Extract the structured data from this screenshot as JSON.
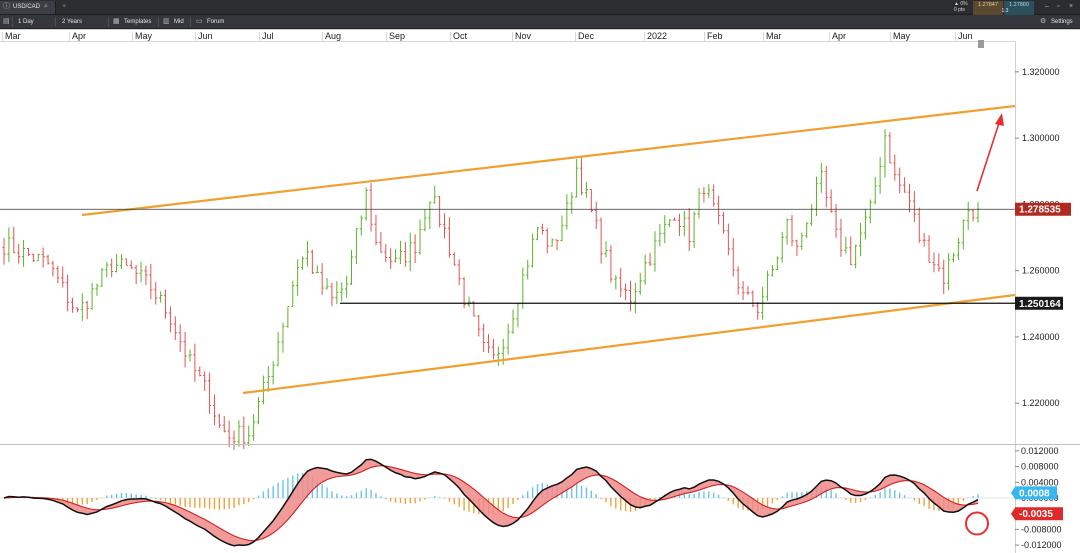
{
  "toolbar": {
    "symbol": "USD/CAD",
    "interval": "1 Day",
    "range": "2 Years",
    "templates_label": "Templates",
    "mid_label": "Mid",
    "forum_label": "Forum",
    "settings_label": "Settings",
    "change_pct": "▲ 0%",
    "change_pts": "0 pts",
    "sell_price": "1.27847",
    "buy_price": "1.27860",
    "spread": "1.3"
  },
  "chart_data": {
    "type": "candlestick",
    "instrument": "USD/CAD",
    "x_months": [
      "Mar",
      "Apr",
      "May",
      "Jun",
      "Jul",
      "Aug",
      "Sep",
      "Oct",
      "Nov",
      "Dec",
      "2022",
      "Feb",
      "Mar",
      "Apr",
      "May",
      "Jun"
    ],
    "y_ticks": [
      "1.320000",
      "1.300000",
      "1.280000",
      "1.260000",
      "1.240000",
      "1.220000"
    ],
    "ylim": [
      1.208,
      1.329
    ],
    "price_path": [
      [
        0,
        1.268
      ],
      [
        9,
        1.262
      ],
      [
        15,
        1.247
      ],
      [
        22,
        1.262
      ],
      [
        26,
        1.26
      ],
      [
        30,
        1.255
      ],
      [
        34,
        1.246
      ],
      [
        38,
        1.232
      ],
      [
        42,
        1.222
      ],
      [
        44,
        1.213
      ],
      [
        46,
        1.21
      ],
      [
        50,
        1.211
      ],
      [
        54,
        1.228
      ],
      [
        58,
        1.25
      ],
      [
        60,
        1.262
      ],
      [
        62,
        1.265
      ],
      [
        64,
        1.257
      ],
      [
        67,
        1.251
      ],
      [
        70,
        1.256
      ],
      [
        72,
        1.27
      ],
      [
        74,
        1.283
      ],
      [
        76,
        1.268
      ],
      [
        80,
        1.262
      ],
      [
        84,
        1.268
      ],
      [
        87,
        1.283
      ],
      [
        90,
        1.272
      ],
      [
        94,
        1.252
      ],
      [
        98,
        1.236
      ],
      [
        100,
        1.233
      ],
      [
        103,
        1.243
      ],
      [
        106,
        1.258
      ],
      [
        109,
        1.273
      ],
      [
        112,
        1.267
      ],
      [
        115,
        1.278
      ],
      [
        117,
        1.291
      ],
      [
        119,
        1.282
      ],
      [
        122,
        1.268
      ],
      [
        125,
        1.255
      ],
      [
        128,
        1.252
      ],
      [
        131,
        1.262
      ],
      [
        134,
        1.27
      ],
      [
        137,
        1.278
      ],
      [
        140,
        1.271
      ],
      [
        143,
        1.286
      ],
      [
        145,
        1.278
      ],
      [
        148,
        1.265
      ],
      [
        151,
        1.252
      ],
      [
        154,
        1.249
      ],
      [
        157,
        1.26
      ],
      [
        160,
        1.274
      ],
      [
        162,
        1.266
      ],
      [
        164,
        1.276
      ],
      [
        167,
        1.287
      ],
      [
        170,
        1.27
      ],
      [
        173,
        1.264
      ],
      [
        177,
        1.278
      ],
      [
        180,
        1.301
      ],
      [
        182,
        1.288
      ],
      [
        185,
        1.281
      ],
      [
        187,
        1.27
      ],
      [
        190,
        1.263
      ],
      [
        192,
        1.258
      ],
      [
        195,
        1.27
      ],
      [
        197,
        1.2785
      ]
    ],
    "last_price": "1.278535",
    "support_label": "1.250164",
    "indicator": {
      "type": "macd",
      "y_ticks": [
        "0.012000",
        "0.008000",
        "0.004000",
        "0.000000",
        "-0.004000",
        "-0.008000",
        "-0.012000"
      ],
      "ylim": [
        -0.0135,
        0.0135
      ],
      "macd_label": "0.0008",
      "signal_label": "-0.0035",
      "histogram_color_positive": "#6cc3e8",
      "histogram_color_negative": "#f0a23a"
    },
    "colors": {
      "up": "#5db329",
      "down": "#e05454",
      "channel": "#f0a030",
      "arrow": "#e53030",
      "last_price_bg": "#b02a22",
      "level_bg": "#1b1b1b",
      "macd_pos_tag": "#38b6f0",
      "macd_neg_tag": "#e02a2a"
    }
  }
}
